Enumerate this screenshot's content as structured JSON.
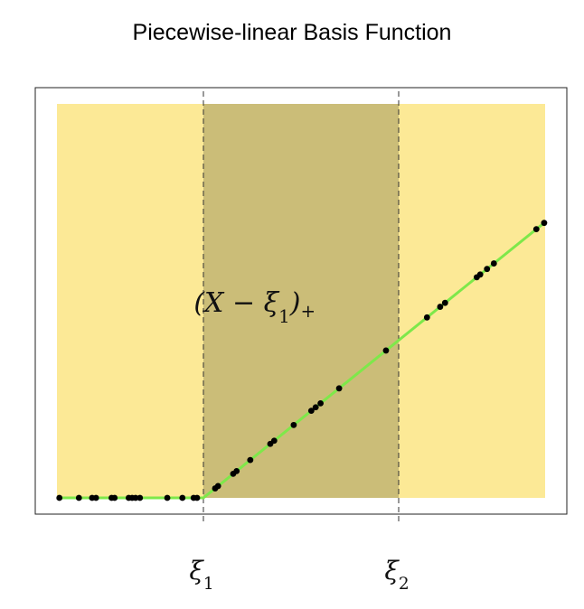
{
  "chart_data": {
    "type": "scatter",
    "title": "Piecewise-linear Basis Function",
    "xlabel": "",
    "ylabel": "",
    "xlim": [
      0,
      100
    ],
    "ylim": [
      0,
      100
    ],
    "grid": false,
    "knots": [
      {
        "name": "ξ",
        "sub": "1",
        "x": 30
      },
      {
        "name": "ξ",
        "sub": "2",
        "x": 70
      }
    ],
    "annotation": {
      "pre": "(X − ξ",
      "sub": "1",
      "post": ")",
      "sup": "+",
      "x": 40.5,
      "y": 50
    },
    "colors": {
      "region_outer": "#fce996",
      "region_middle": "#cbbd78",
      "line": "#7ee84a",
      "points": "#000000"
    },
    "line": {
      "x": [
        0,
        30,
        100
      ],
      "y": [
        0,
        0,
        70
      ]
    },
    "series": [
      {
        "x": [
          0.5,
          4.5,
          7.2,
          8.0,
          11.2,
          11.8,
          14.7,
          15.4,
          16.1,
          17.0,
          22.6,
          25.7,
          28.0,
          28.7,
          32.4,
          33.0,
          36.1,
          36.8,
          39.6,
          43.7,
          44.5,
          48.5,
          52.1,
          53.0,
          54.0,
          57.8,
          67.4,
          75.8,
          78.5,
          79.5,
          86.0,
          86.7,
          88.1,
          89.5,
          98.2,
          99.8
        ],
        "y": [
          0.0,
          0.0,
          0.0,
          0.0,
          0.0,
          0.0,
          0.0,
          0.0,
          0.0,
          0.0,
          0.0,
          0.0,
          0.0,
          0.0,
          2.4,
          3.0,
          6.1,
          6.8,
          9.6,
          13.7,
          14.5,
          18.5,
          22.1,
          23.0,
          24.0,
          27.8,
          37.4,
          45.8,
          48.5,
          49.5,
          56.0,
          56.7,
          58.1,
          59.5,
          68.2,
          69.8
        ]
      }
    ]
  }
}
